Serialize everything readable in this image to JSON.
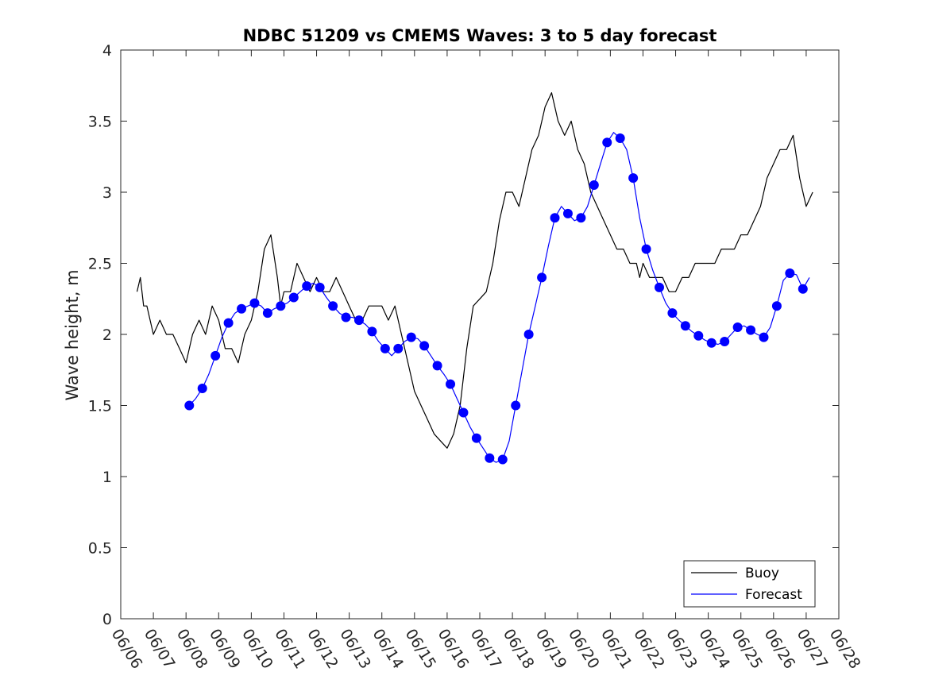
{
  "chart_data": {
    "type": "line",
    "title": "NDBC 51209 vs CMEMS Waves: 3 to 5 day forecast",
    "xlabel": "",
    "ylabel": "Wave height, m",
    "ylim": [
      0,
      4
    ],
    "xlim": [
      "06/06",
      "06/28"
    ],
    "yticks": [
      "0",
      "0.5",
      "1",
      "1.5",
      "2",
      "2.5",
      "3",
      "3.5",
      "4"
    ],
    "xticks": [
      "06/06",
      "06/07",
      "06/08",
      "06/09",
      "06/10",
      "06/11",
      "06/12",
      "06/13",
      "06/14",
      "06/15",
      "06/16",
      "06/17",
      "06/18",
      "06/19",
      "06/20",
      "06/21",
      "06/22",
      "06/23",
      "06/24",
      "06/25",
      "06/26",
      "06/27",
      "06/28"
    ],
    "grid": false,
    "legend": {
      "position": "bottom-right",
      "entries": [
        "Buoy",
        "Forecast"
      ]
    },
    "series": [
      {
        "name": "Buoy",
        "color": "#000000",
        "x": [
          0.5,
          0.6,
          0.7,
          0.8,
          0.9,
          1.0,
          1.2,
          1.4,
          1.6,
          1.8,
          2.0,
          2.2,
          2.4,
          2.6,
          2.8,
          3.0,
          3.2,
          3.4,
          3.6,
          3.8,
          4.0,
          4.2,
          4.4,
          4.6,
          4.8,
          4.9,
          5.0,
          5.1,
          5.2,
          5.4,
          5.6,
          5.8,
          6.0,
          6.2,
          6.4,
          6.6,
          6.8,
          7.0,
          7.2,
          7.4,
          7.6,
          7.8,
          8.0,
          8.2,
          8.4,
          8.6,
          8.8,
          9.0,
          9.2,
          9.4,
          9.6,
          9.8,
          10.0,
          10.2,
          10.4,
          10.6,
          10.8,
          11.0,
          11.2,
          11.4,
          11.6,
          11.8,
          12.0,
          12.2,
          12.4,
          12.6,
          12.8,
          13.0,
          13.2,
          13.4,
          13.6,
          13.8,
          14.0,
          14.2,
          14.4,
          14.6,
          14.8,
          15.0,
          15.2,
          15.4,
          15.6,
          15.8,
          15.9,
          16.0,
          16.2,
          16.4,
          16.6,
          16.8,
          17.0,
          17.2,
          17.4,
          17.6,
          17.8,
          18.0,
          18.2,
          18.4,
          18.6,
          18.8,
          19.0,
          19.2,
          19.4,
          19.6,
          19.8,
          20.0,
          20.2,
          20.4,
          20.6,
          20.8,
          21.0,
          21.2
        ],
        "y": [
          2.3,
          2.4,
          2.2,
          2.2,
          2.1,
          2.0,
          2.1,
          2.0,
          2.0,
          1.9,
          1.8,
          2.0,
          2.1,
          2.0,
          2.2,
          2.1,
          1.9,
          1.9,
          1.8,
          2.0,
          2.1,
          2.3,
          2.6,
          2.7,
          2.4,
          2.2,
          2.3,
          2.3,
          2.3,
          2.5,
          2.4,
          2.3,
          2.4,
          2.3,
          2.3,
          2.4,
          2.3,
          2.2,
          2.1,
          2.1,
          2.2,
          2.2,
          2.2,
          2.1,
          2.2,
          2.0,
          1.8,
          1.6,
          1.5,
          1.4,
          1.3,
          1.25,
          1.2,
          1.3,
          1.5,
          1.9,
          2.2,
          2.25,
          2.3,
          2.5,
          2.8,
          3.0,
          3.0,
          2.9,
          3.1,
          3.3,
          3.4,
          3.6,
          3.7,
          3.5,
          3.4,
          3.5,
          3.3,
          3.2,
          3.0,
          2.9,
          2.8,
          2.7,
          2.6,
          2.6,
          2.5,
          2.5,
          2.4,
          2.5,
          2.4,
          2.4,
          2.4,
          2.3,
          2.3,
          2.4,
          2.4,
          2.5,
          2.5,
          2.5,
          2.5,
          2.6,
          2.6,
          2.6,
          2.7,
          2.7,
          2.8,
          2.9,
          3.1,
          3.2,
          3.3,
          3.3,
          3.4,
          3.1,
          2.9,
          3.0
        ]
      },
      {
        "name": "Forecast",
        "color": "#0000ff",
        "x": [
          2.1,
          2.3,
          2.5,
          2.7,
          2.9,
          3.1,
          3.3,
          3.5,
          3.7,
          3.9,
          4.1,
          4.3,
          4.5,
          4.7,
          4.9,
          5.1,
          5.3,
          5.5,
          5.7,
          5.9,
          6.1,
          6.3,
          6.5,
          6.7,
          6.9,
          7.1,
          7.3,
          7.5,
          7.7,
          7.9,
          8.1,
          8.3,
          8.5,
          8.7,
          8.9,
          9.1,
          9.3,
          9.5,
          9.7,
          9.9,
          10.1,
          10.3,
          10.5,
          10.7,
          10.9,
          11.1,
          11.3,
          11.5,
          11.7,
          11.9,
          12.1,
          12.3,
          12.5,
          12.7,
          12.9,
          13.1,
          13.3,
          13.5,
          13.7,
          13.9,
          14.1,
          14.3,
          14.5,
          14.7,
          14.9,
          15.1,
          15.3,
          15.5,
          15.7,
          15.9,
          16.1,
          16.3,
          16.5,
          16.7,
          16.9,
          17.1,
          17.3,
          17.5,
          17.7,
          17.9,
          18.1,
          18.3,
          18.5,
          18.7,
          18.9,
          19.1,
          19.3,
          19.5,
          19.7,
          19.9,
          20.1,
          20.3,
          20.5,
          20.7,
          20.9,
          21.1
        ],
        "y": [
          1.5,
          1.55,
          1.62,
          1.72,
          1.85,
          1.98,
          2.08,
          2.15,
          2.18,
          2.2,
          2.22,
          2.2,
          2.15,
          2.18,
          2.2,
          2.22,
          2.26,
          2.3,
          2.34,
          2.36,
          2.33,
          2.26,
          2.2,
          2.15,
          2.12,
          2.12,
          2.1,
          2.07,
          2.02,
          1.95,
          1.9,
          1.85,
          1.9,
          1.95,
          1.98,
          1.97,
          1.92,
          1.85,
          1.78,
          1.72,
          1.65,
          1.55,
          1.45,
          1.35,
          1.27,
          1.2,
          1.13,
          1.1,
          1.12,
          1.25,
          1.5,
          1.75,
          2.0,
          2.2,
          2.4,
          2.62,
          2.82,
          2.9,
          2.85,
          2.8,
          2.82,
          2.9,
          3.05,
          3.2,
          3.35,
          3.42,
          3.38,
          3.3,
          3.1,
          2.82,
          2.6,
          2.45,
          2.33,
          2.22,
          2.15,
          2.1,
          2.06,
          2.02,
          1.99,
          1.96,
          1.94,
          1.93,
          1.95,
          2.0,
          2.05,
          2.06,
          2.03,
          2.0,
          1.98,
          2.05,
          2.2,
          2.38,
          2.43,
          2.42,
          2.32,
          2.4
        ]
      }
    ]
  }
}
